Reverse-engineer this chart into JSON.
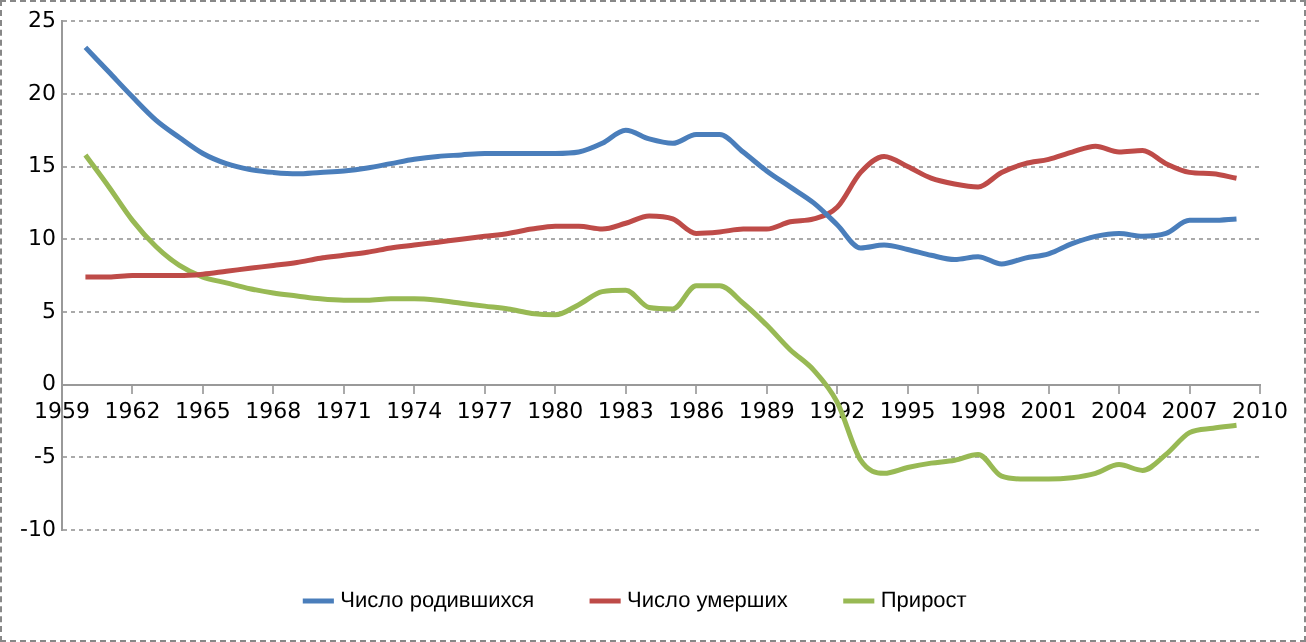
{
  "chart_data": {
    "type": "line",
    "x": [
      1960,
      1961,
      1962,
      1963,
      1964,
      1965,
      1966,
      1967,
      1968,
      1969,
      1970,
      1971,
      1972,
      1973,
      1974,
      1975,
      1976,
      1977,
      1978,
      1979,
      1980,
      1981,
      1982,
      1983,
      1984,
      1985,
      1986,
      1987,
      1988,
      1989,
      1990,
      1991,
      1992,
      1993,
      1994,
      1995,
      1996,
      1997,
      1998,
      1999,
      2000,
      2001,
      2002,
      2003,
      2004,
      2005,
      2006,
      2007,
      2008,
      2009
    ],
    "series": [
      {
        "name": "Число родившихся",
        "color": "#4a7ebb",
        "values": [
          23.2,
          21.5,
          19.8,
          18.2,
          17.0,
          15.9,
          15.2,
          14.8,
          14.6,
          14.5,
          14.6,
          14.7,
          14.9,
          15.2,
          15.5,
          15.7,
          15.8,
          15.9,
          15.9,
          15.9,
          15.9,
          16.0,
          16.6,
          17.5,
          16.9,
          16.6,
          17.2,
          17.2,
          16.0,
          14.7,
          13.6,
          12.5,
          11.0,
          9.4,
          9.6,
          9.3,
          8.9,
          8.6,
          8.8,
          8.3,
          8.7,
          9.0,
          9.7,
          10.2,
          10.4,
          10.2,
          10.4,
          11.3,
          11.3,
          11.4
        ]
      },
      {
        "name": "Число умерших",
        "color": "#be4b48",
        "values": [
          7.4,
          7.4,
          7.5,
          7.5,
          7.5,
          7.6,
          7.8,
          8.0,
          8.2,
          8.4,
          8.7,
          8.9,
          9.1,
          9.4,
          9.6,
          9.8,
          10.0,
          10.2,
          10.4,
          10.7,
          10.9,
          10.9,
          10.7,
          11.1,
          11.6,
          11.4,
          10.4,
          10.5,
          10.7,
          10.7,
          11.2,
          11.4,
          12.2,
          14.6,
          15.7,
          15.0,
          14.2,
          13.8,
          13.6,
          14.6,
          15.2,
          15.5,
          16.0,
          16.4,
          16.0,
          16.1,
          15.2,
          14.6,
          14.5,
          14.2
        ]
      },
      {
        "name": "Прирост",
        "color": "#98b954",
        "values": [
          15.8,
          13.6,
          11.3,
          9.5,
          8.2,
          7.4,
          7.0,
          6.6,
          6.3,
          6.1,
          5.9,
          5.8,
          5.8,
          5.9,
          5.9,
          5.8,
          5.6,
          5.4,
          5.2,
          4.9,
          4.8,
          5.5,
          6.4,
          6.5,
          5.3,
          5.2,
          6.8,
          6.8,
          5.6,
          4.1,
          2.4,
          1.0,
          -1.2,
          -5.2,
          -6.1,
          -5.7,
          -5.4,
          -5.2,
          -4.8,
          -6.3,
          -6.5,
          -6.5,
          -6.4,
          -6.1,
          -5.5,
          -5.9,
          -4.8,
          -3.3,
          -3.0,
          -2.8
        ]
      }
    ],
    "xlim": [
      1959,
      2010
    ],
    "xticks": [
      1959,
      1962,
      1965,
      1968,
      1971,
      1974,
      1977,
      1980,
      1983,
      1986,
      1989,
      1992,
      1995,
      1998,
      2001,
      2004,
      2007,
      2010
    ],
    "ylim": [
      -10,
      25
    ],
    "yticks": [
      -10,
      -5,
      0,
      5,
      10,
      15,
      20,
      25
    ],
    "grid": "y",
    "legend": "bottom",
    "marker": "none"
  }
}
